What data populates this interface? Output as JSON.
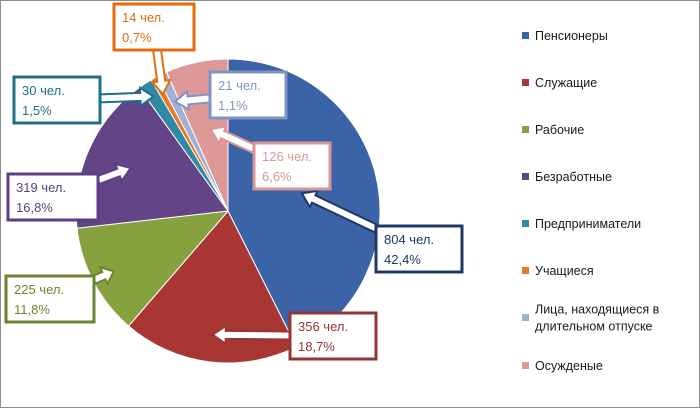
{
  "chart_data": {
    "type": "pie",
    "title": "",
    "slices": [
      {
        "name": "Пенсионеры",
        "count_label": "804 чел.",
        "percent_label": "42,4%",
        "value": 42.4,
        "color": "#3b63a8",
        "label_color": "#1f3864"
      },
      {
        "name": "Служащие",
        "count_label": "356 чел.",
        "percent_label": "18,7%",
        "value": 18.7,
        "color": "#a83632",
        "label_color": "#963634"
      },
      {
        "name": "Рабочие",
        "count_label": "225 чел.",
        "percent_label": "11,8%",
        "value": 11.8,
        "color": "#86a23f",
        "label_color": "#6b8530"
      },
      {
        "name": "Безработные",
        "count_label": "319 чел.",
        "percent_label": "16,8%",
        "value": 16.8,
        "color": "#634487",
        "label_color": "#5b3f84"
      },
      {
        "name": "Предприниматели",
        "count_label": "30 чел.",
        "percent_label": "1,5%",
        "value": 1.5,
        "color": "#2f8ba4",
        "label_color": "#1f6f88"
      },
      {
        "name": "Учащиеся",
        "count_label": "14 чел.",
        "percent_label": "0,7%",
        "value": 0.7,
        "color": "#e8792c",
        "label_color": "#e46c0a"
      },
      {
        "name": "Лица, находящиеся в длительном отпуске",
        "count_label": "21 чел.",
        "percent_label": "1,1%",
        "value": 1.1,
        "color": "#9fb1d8",
        "label_color": "#7f94c2"
      },
      {
        "name": "Осужденые",
        "count_label": "126 чел.",
        "percent_label": "6,6%",
        "value": 6.6,
        "color": "#de9898",
        "label_color": "#d99595"
      }
    ],
    "legend_position": "right"
  },
  "legend_items": [
    [
      "Пенсионеры"
    ],
    [
      "Служащие"
    ],
    [
      "Рабочие"
    ],
    [
      "Безработные"
    ],
    [
      "Предприниматели"
    ],
    [
      "Учащиеся"
    ],
    [
      "Лица, находящиеся в",
      "длительном отпуске"
    ],
    [
      "Осужденые"
    ]
  ]
}
